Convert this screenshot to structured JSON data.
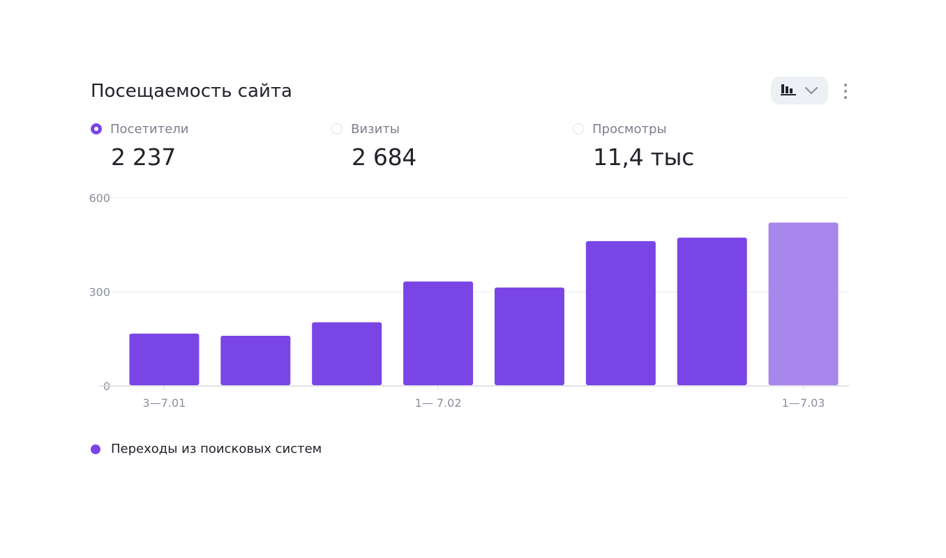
{
  "title": "Посещаемость сайта",
  "view_switch": {
    "icon": "bar-chart-icon",
    "chevron": "chevron-down-icon"
  },
  "menu_icon": "more-vertical-icon",
  "metrics": [
    {
      "label": "Посетители",
      "value": "2 237",
      "selected": true
    },
    {
      "label": "Визиты",
      "value": "2 684",
      "selected": false
    },
    {
      "label": "Просмотры",
      "value": "11,4 тыс",
      "selected": false
    }
  ],
  "colors": {
    "accent": "#7a45e5",
    "highlight": "#a887ec",
    "grid": "#e7e9ee",
    "axis": "#d6d9e0"
  },
  "chart_data": {
    "type": "bar",
    "categories": [
      "3—7.01",
      "",
      "",
      "1— 7.02",
      "",
      "",
      "",
      "1—7.03"
    ],
    "values": [
      167,
      160,
      203,
      333,
      314,
      462,
      473,
      521
    ],
    "highlight_last": true,
    "yticks": [
      "0",
      "300",
      "600"
    ],
    "ylim": [
      0,
      600
    ],
    "grid": true,
    "legend": [
      "Переходы из поисковых систем"
    ],
    "legend_position": "bottom-left"
  }
}
